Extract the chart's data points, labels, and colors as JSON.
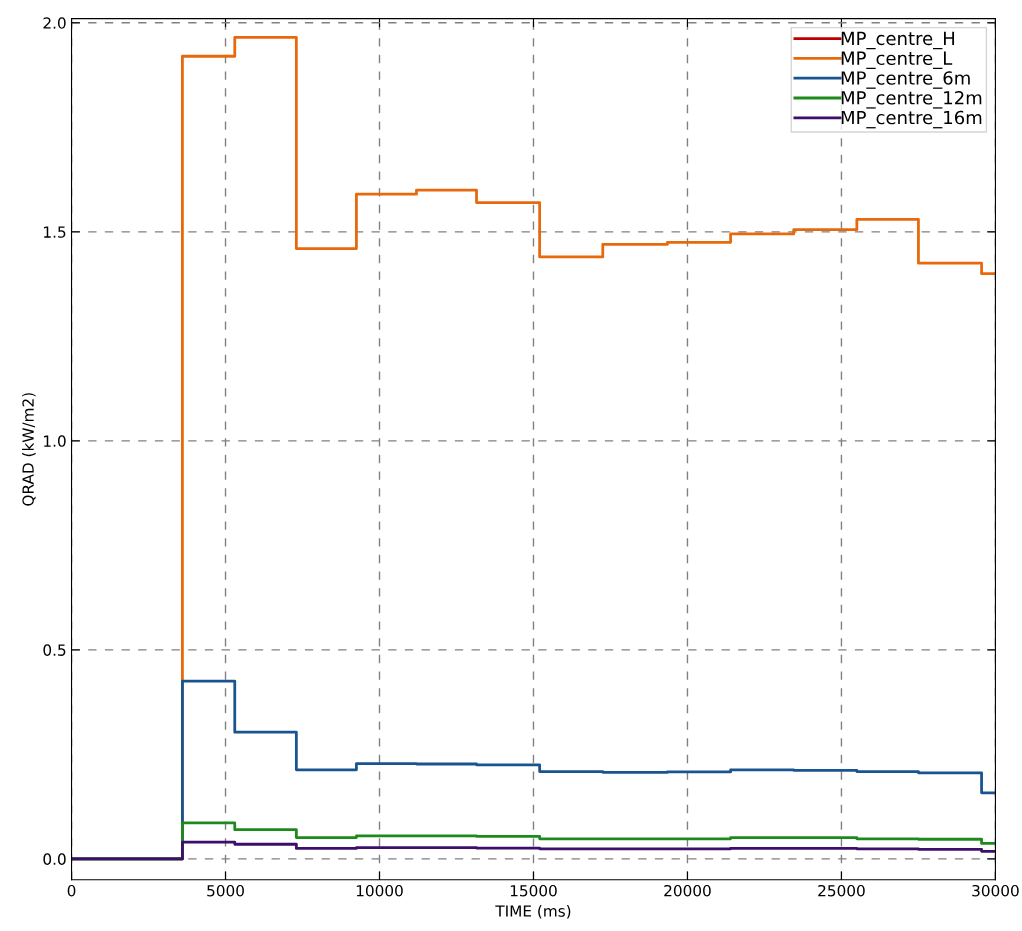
{
  "chart_data": {
    "type": "step",
    "xlabel": "TIME (ms)",
    "ylabel": "QRAD (kW/m2)",
    "x": [
      0,
      3600,
      5300,
      7300,
      9250,
      11200,
      13150,
      15200,
      17250,
      19350,
      21400,
      23450,
      25500,
      27500,
      29550,
      30000
    ],
    "series": [
      {
        "name": "MP_centre_H",
        "color": "#c00000",
        "values": [
          null,
          null,
          null,
          null,
          null,
          null,
          null,
          null,
          null,
          null,
          null,
          null,
          null,
          null,
          null,
          null
        ]
      },
      {
        "name": "MP_centre_L",
        "color": "#e8680c",
        "values": [
          0,
          1.92,
          1.965,
          1.46,
          1.59,
          1.6,
          1.57,
          1.44,
          1.47,
          1.475,
          1.495,
          1.505,
          1.53,
          1.425,
          1.4,
          1.4
        ]
      },
      {
        "name": "MP_centre_6m",
        "color": "#1a5490",
        "values": [
          0,
          0.425,
          0.303,
          0.213,
          0.228,
          0.227,
          0.225,
          0.209,
          0.207,
          0.208,
          0.213,
          0.212,
          0.209,
          0.206,
          0.158,
          0.158
        ]
      },
      {
        "name": "MP_centre_12m",
        "color": "#1e8a1e",
        "values": [
          0,
          0.086,
          0.07,
          0.051,
          0.055,
          0.055,
          0.054,
          0.048,
          0.048,
          0.048,
          0.051,
          0.051,
          0.048,
          0.047,
          0.037,
          0.037
        ]
      },
      {
        "name": "MP_centre_16m",
        "color": "#3d0f6b",
        "values": [
          0,
          0.04,
          0.035,
          0.025,
          0.027,
          0.027,
          0.026,
          0.024,
          0.024,
          0.024,
          0.025,
          0.025,
          0.024,
          0.023,
          0.018,
          0.018
        ]
      }
    ],
    "xlim": [
      0,
      30000
    ],
    "xticks": [
      0,
      5000,
      10000,
      15000,
      20000,
      25000,
      30000
    ],
    "ylim": [
      -0.05,
      2.01
    ],
    "yticks": [
      {
        "value": 0,
        "label": "0.0"
      },
      {
        "value": 0.5,
        "label": "0.5"
      },
      {
        "value": 1,
        "label": "1.0"
      },
      {
        "value": 1.5,
        "label": "1.5"
      },
      {
        "value": 2,
        "label": "2.0"
      }
    ],
    "grid": true,
    "legend": "top right",
    "line_style": "solid"
  }
}
